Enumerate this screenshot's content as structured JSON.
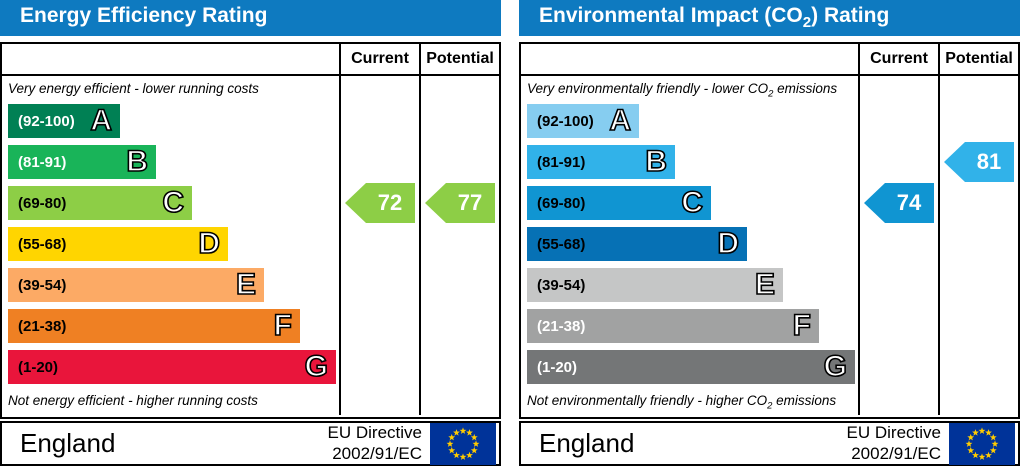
{
  "colors": {
    "header_bar": "#0e7ac0",
    "border": "#000000",
    "eu_flag_bg": "#003399",
    "eu_flag_stars": "#ffcc00"
  },
  "panels": [
    {
      "title": {
        "pre": "Energy Efficiency Rating",
        "sub": "",
        "post": ""
      },
      "columns": {
        "current": "Current",
        "potential": "Potential"
      },
      "top_note": {
        "pre": "Very energy efficient - lower running costs",
        "sub": "",
        "post": ""
      },
      "bottom_note": {
        "pre": "Not energy efficient - higher running costs",
        "sub": "",
        "post": ""
      },
      "bands": [
        {
          "letter": "A",
          "range": "(92-100)",
          "color": "#008054",
          "text_color": "#ffffff"
        },
        {
          "letter": "B",
          "range": "(81-91)",
          "color": "#19b459",
          "text_color": "#ffffff"
        },
        {
          "letter": "C",
          "range": "(69-80)",
          "color": "#8dce46",
          "text_color": "#000000"
        },
        {
          "letter": "D",
          "range": "(55-68)",
          "color": "#ffd500",
          "text_color": "#000000"
        },
        {
          "letter": "E",
          "range": "(39-54)",
          "color": "#fcaa65",
          "text_color": "#000000"
        },
        {
          "letter": "F",
          "range": "(21-38)",
          "color": "#ef8023",
          "text_color": "#000000"
        },
        {
          "letter": "G",
          "range": "(1-20)",
          "color": "#e9153b",
          "text_color": "#000000"
        }
      ],
      "current": {
        "value": "72",
        "row": 2,
        "color": "#8dce46"
      },
      "potential": {
        "value": "77",
        "row": 2,
        "color": "#8dce46"
      },
      "footer": {
        "region": "England",
        "directive_line1": "EU Directive",
        "directive_line2": "2002/91/EC"
      }
    },
    {
      "title": {
        "pre": "Environmental Impact (CO",
        "sub": "2",
        "post": ") Rating"
      },
      "columns": {
        "current": "Current",
        "potential": "Potential"
      },
      "top_note": {
        "pre": "Very environmentally friendly - lower CO",
        "sub": "2",
        "post": " emissions"
      },
      "bottom_note": {
        "pre": "Not environmentally friendly - higher CO",
        "sub": "2",
        "post": " emissions"
      },
      "bands": [
        {
          "letter": "A",
          "range": "(92-100)",
          "color": "#86cdf0",
          "text_color": "#000000"
        },
        {
          "letter": "B",
          "range": "(81-91)",
          "color": "#31b2e9",
          "text_color": "#000000"
        },
        {
          "letter": "C",
          "range": "(69-80)",
          "color": "#1095d2",
          "text_color": "#000000"
        },
        {
          "letter": "D",
          "range": "(55-68)",
          "color": "#0671b5",
          "text_color": "#000000"
        },
        {
          "letter": "E",
          "range": "(39-54)",
          "color": "#c5c6c6",
          "text_color": "#000000"
        },
        {
          "letter": "F",
          "range": "(21-38)",
          "color": "#a1a2a2",
          "text_color": "#ffffff"
        },
        {
          "letter": "G",
          "range": "(1-20)",
          "color": "#747677",
          "text_color": "#ffffff"
        }
      ],
      "current": {
        "value": "74",
        "row": 2,
        "color": "#1095d2"
      },
      "potential": {
        "value": "81",
        "row": 1,
        "color": "#31b2e9"
      },
      "footer": {
        "region": "England",
        "directive_line1": "EU Directive",
        "directive_line2": "2002/91/EC"
      }
    }
  ],
  "chart_data": [
    {
      "type": "bar",
      "title": "Energy Efficiency Rating",
      "categories": [
        "A (92-100)",
        "B (81-91)",
        "C (69-80)",
        "D (55-68)",
        "E (39-54)",
        "F (21-38)",
        "G (1-20)"
      ],
      "series": [
        {
          "name": "Current",
          "value": 72,
          "band": "C"
        },
        {
          "name": "Potential",
          "value": 77,
          "band": "C"
        }
      ],
      "top_annotation": "Very energy efficient - lower running costs",
      "bottom_annotation": "Not energy efficient - higher running costs",
      "region": "England",
      "directive": "EU Directive 2002/91/EC"
    },
    {
      "type": "bar",
      "title": "Environmental Impact (CO2) Rating",
      "categories": [
        "A (92-100)",
        "B (81-91)",
        "C (69-80)",
        "D (55-68)",
        "E (39-54)",
        "F (21-38)",
        "G (1-20)"
      ],
      "series": [
        {
          "name": "Current",
          "value": 74,
          "band": "C"
        },
        {
          "name": "Potential",
          "value": 81,
          "band": "B"
        }
      ],
      "top_annotation": "Very environmentally friendly - lower CO2 emissions",
      "bottom_annotation": "Not environmentally friendly - higher CO2 emissions",
      "region": "England",
      "directive": "EU Directive 2002/91/EC"
    }
  ]
}
